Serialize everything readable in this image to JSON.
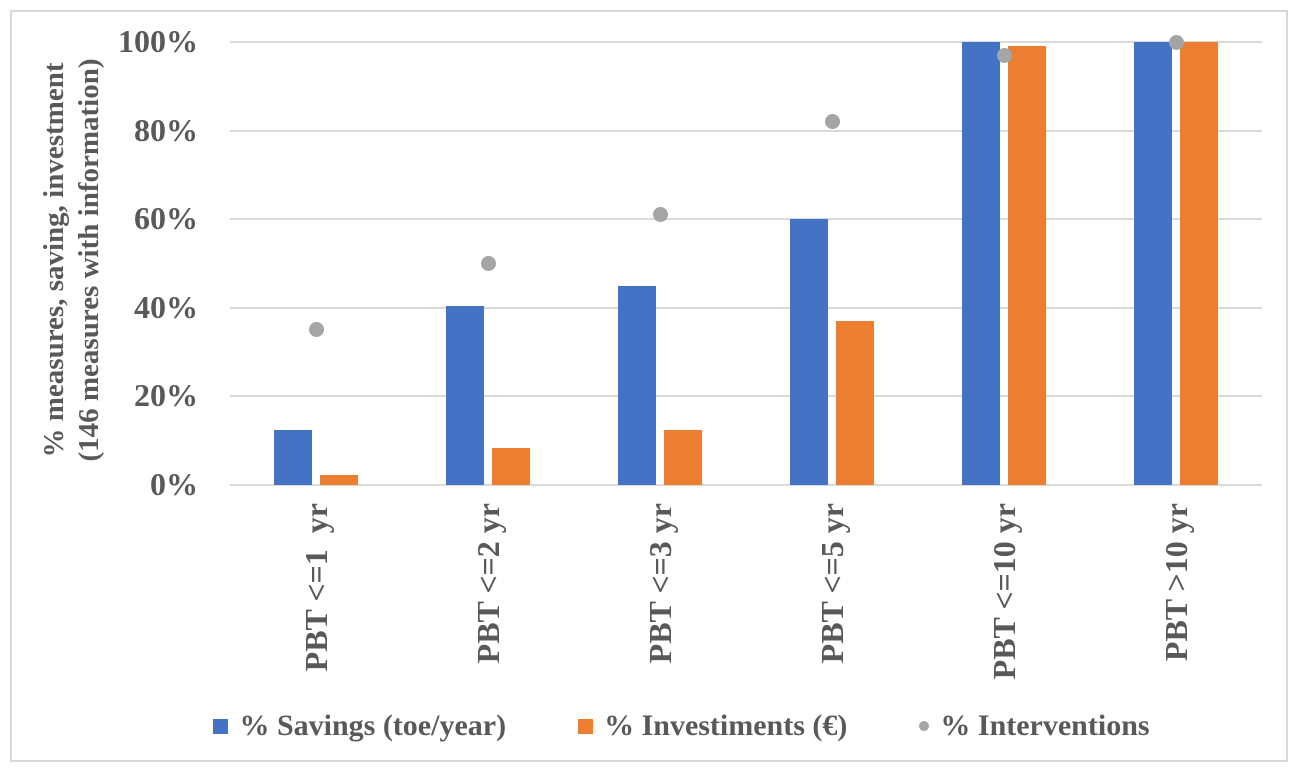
{
  "colors": {
    "text": "#595959",
    "gridline": "#D9D9D9",
    "frame_border": "#D8D8D8",
    "background": "#FFFFFF",
    "savings_blue": "#4472C4",
    "investiments_orange": "#ED7D31",
    "interventions_gray": "#A5A5A5"
  },
  "chart_data": {
    "type": "bar",
    "title": "",
    "ylabel_line1": "% measures, saving, investment",
    "ylabel_line2": "(146 measures with information)",
    "categories": [
      "PBT <=1  yr",
      "PBT <=2 yr",
      "PBT <=3 yr",
      "PBT <=5 yr",
      "PBT <=10 yr",
      "PBT >10 yr"
    ],
    "series": [
      {
        "name": "% Savings (toe/year)",
        "type": "bar",
        "color": "#4472C4",
        "values": [
          12.5,
          40.5,
          45,
          60,
          100,
          100
        ]
      },
      {
        "name": "% Investiments (€)",
        "type": "bar",
        "color": "#ED7D31",
        "values": [
          2.3,
          8.3,
          12.5,
          37,
          99,
          100
        ]
      },
      {
        "name": "% Interventions",
        "type": "scatter",
        "color": "#A5A5A5",
        "values": [
          35,
          50,
          61,
          82,
          97,
          100
        ]
      }
    ],
    "y_ticks": [
      "0%",
      "20%",
      "40%",
      "60%",
      "80%",
      "100%"
    ],
    "y_tick_values": [
      0,
      20,
      40,
      60,
      80,
      100
    ],
    "ylim": [
      0,
      100
    ],
    "grid": true,
    "legend_position": "bottom"
  }
}
